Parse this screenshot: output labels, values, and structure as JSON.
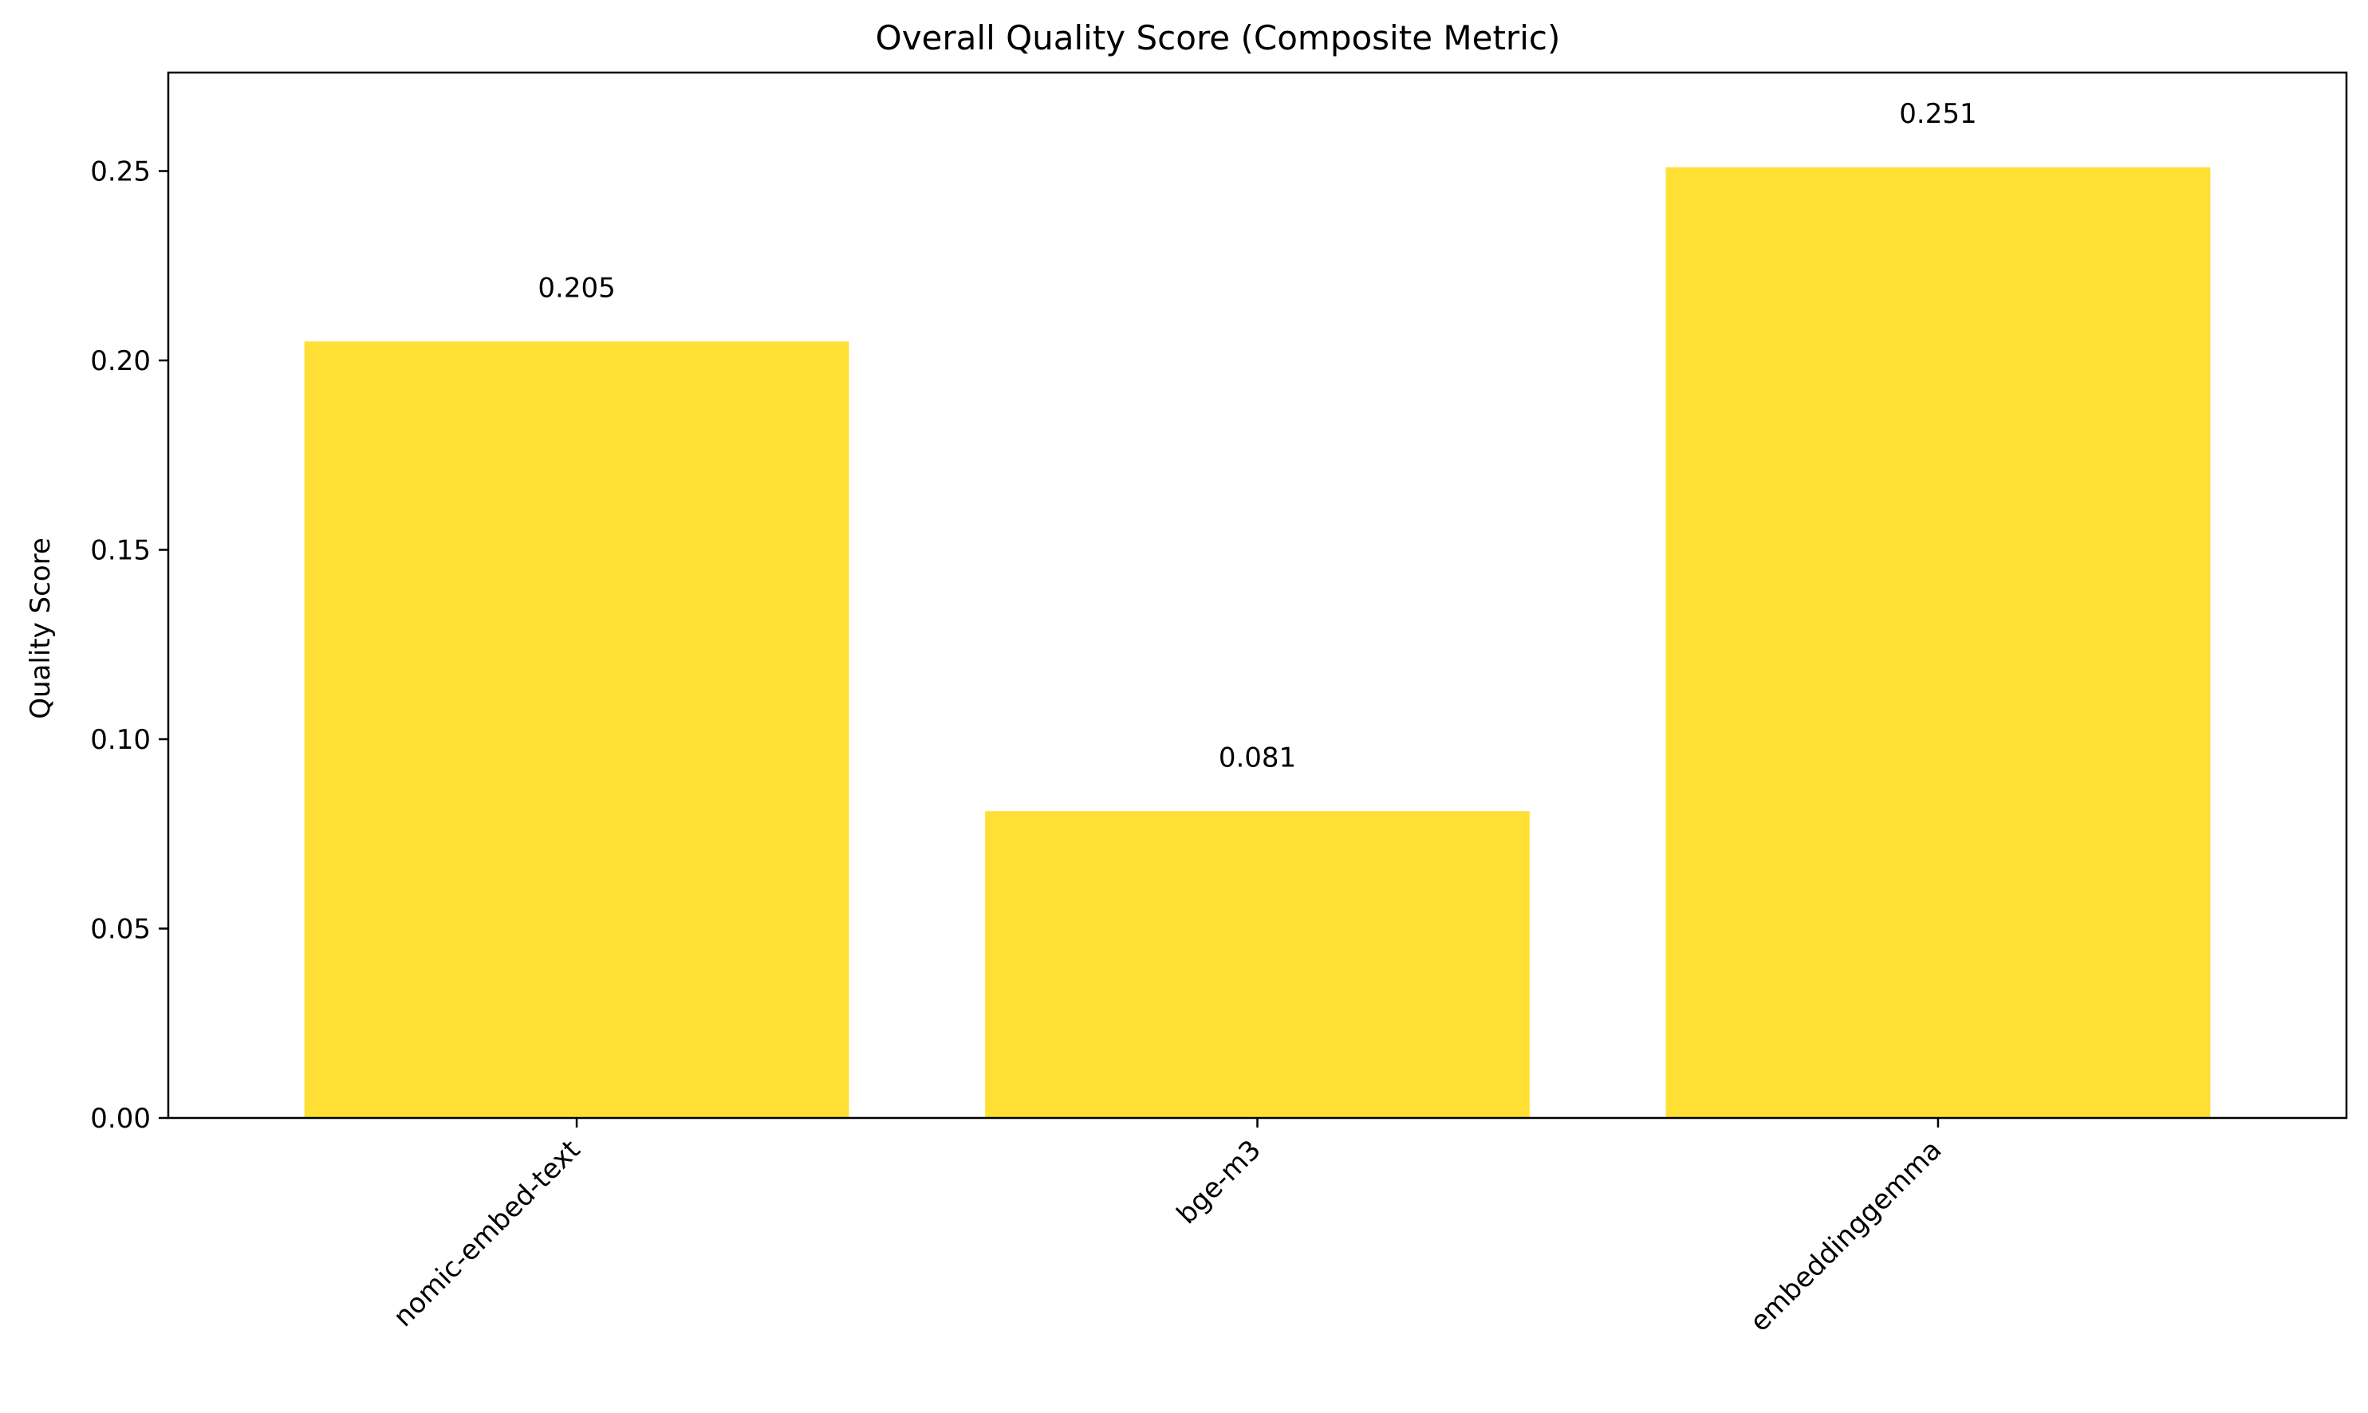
{
  "chart_data": {
    "type": "bar",
    "title": "Overall Quality Score (Composite Metric)",
    "xlabel": "",
    "ylabel": "Quality Score",
    "categories": [
      "nomic-embed-text",
      "bge-m3",
      "embeddinggemma"
    ],
    "values": [
      0.205,
      0.081,
      0.251
    ],
    "value_labels": [
      "0.205",
      "0.081",
      "0.251"
    ],
    "ylim": [
      0,
      0.276
    ],
    "yticks": [
      0.0,
      0.05,
      0.1,
      0.15,
      0.2,
      0.25
    ],
    "ytick_labels": [
      "0.00",
      "0.05",
      "0.10",
      "0.15",
      "0.20",
      "0.25"
    ],
    "grid": false,
    "legend": "none",
    "colors": {
      "bar": "#FFDF33",
      "axis": "#000000",
      "background": "#ffffff"
    }
  }
}
